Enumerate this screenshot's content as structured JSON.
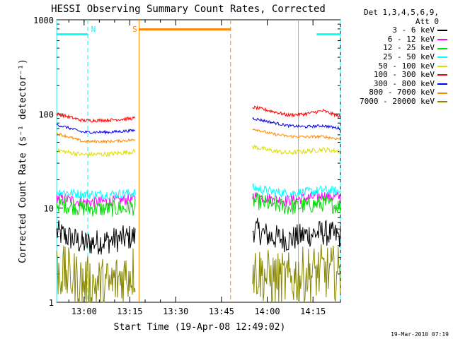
{
  "chart_data": {
    "type": "line",
    "title": "HESSI Observing Summary Count Rates, Corrected",
    "xlabel": "Start Time (19-Apr-08 12:49:02)",
    "ylabel": "Corrected Count Rate (s⁻¹ detector⁻¹)",
    "yscale": "log",
    "ylim": [
      1,
      1000
    ],
    "xlim_minutes": [
      12.85,
      14.4
    ],
    "xticks": [
      "13:00",
      "13:15",
      "13:30",
      "13:45",
      "14:00",
      "14:15"
    ],
    "yticks": [
      "1",
      "10",
      "100",
      "1000"
    ],
    "legend": {
      "header": [
        "Det 1,3,4,5,6,9,",
        "Att 0"
      ],
      "placement": "right-outside"
    },
    "series": [
      {
        "name": "3 - 6 keV",
        "color": "#000000",
        "segA": [
          5.5,
          4.2,
          4.5,
          5.0
        ],
        "segB": [
          6.0,
          5.0,
          4.6,
          5.2,
          5.5,
          5.0
        ],
        "noise": 0.14
      },
      {
        "name": "6 - 12 keV",
        "color": "#ff00ff",
        "segA": [
          13.0,
          11.5,
          11.8,
          12.5
        ],
        "segB": [
          13.5,
          12.5,
          12.0,
          12.8,
          13.5,
          13.0
        ],
        "noise": 0.06
      },
      {
        "name": "12 - 25 keV",
        "color": "#00dd00",
        "segA": [
          11.0,
          10.0,
          9.8,
          10.2
        ],
        "segB": [
          12.0,
          11.0,
          10.2,
          10.6,
          11.2,
          10.5
        ],
        "noise": 0.09
      },
      {
        "name": "25 - 50 keV",
        "color": "#00ffff",
        "segA": [
          15.0,
          14.0,
          14.0,
          14.5
        ],
        "segB": [
          16.5,
          15.0,
          14.3,
          14.8,
          15.5,
          15.0
        ],
        "noise": 0.05
      },
      {
        "name": "50 - 100 keV",
        "color": "#dddd00",
        "segA": [
          41.0,
          37.0,
          37.5,
          40.0
        ],
        "segB": [
          45.0,
          41.0,
          38.5,
          40.0,
          42.0,
          40.0
        ],
        "noise": 0.025
      },
      {
        "name": "100 - 300 keV",
        "color": "#ff0000",
        "segA": [
          100.0,
          85.0,
          86.0,
          90.0
        ],
        "segB": [
          118.0,
          108.0,
          97.0,
          100.0,
          108.0,
          93.0
        ],
        "noise": 0.018
      },
      {
        "name": "300 - 800 keV",
        "color": "#0000ff",
        "segA": [
          77.0,
          64.0,
          64.0,
          67.0
        ],
        "segB": [
          90.0,
          82.0,
          75.0,
          73.0,
          75.0,
          70.0
        ],
        "noise": 0.015
      },
      {
        "name": "800 - 7000 keV",
        "color": "#ff8800",
        "segA": [
          62.0,
          51.0,
          51.0,
          53.0
        ],
        "segB": [
          70.0,
          62.0,
          58.0,
          57.0,
          57.5,
          54.0
        ],
        "noise": 0.015
      },
      {
        "name": "7000 - 20000 keV",
        "color": "#888800",
        "segA": [
          2.2,
          1.6,
          1.5,
          2.2
        ],
        "segB": [
          2.2,
          1.8,
          1.7,
          2.0,
          2.1,
          2.0
        ],
        "noise": 0.3
      }
    ],
    "segments": {
      "A": {
        "start": 12.85,
        "end": 13.28
      },
      "B": {
        "start": 13.92,
        "end": 14.4
      }
    },
    "flags": [
      {
        "label": "N",
        "color": "#00ffff",
        "level": 700,
        "bars": [
          [
            12.85,
            13.02
          ],
          [
            14.27,
            14.4
          ]
        ],
        "lines_solid": [
          12.85,
          14.17
        ],
        "lines_dashed": [
          13.02,
          14.4
        ]
      },
      {
        "label": "S",
        "color": "#ff8800",
        "level": 790,
        "bars": [
          [
            13.3,
            13.8
          ]
        ],
        "lines_solid": [
          13.3
        ],
        "lines_dashed": [
          13.8
        ]
      }
    ],
    "timestamp": "19-Mar-2010 07:19"
  }
}
